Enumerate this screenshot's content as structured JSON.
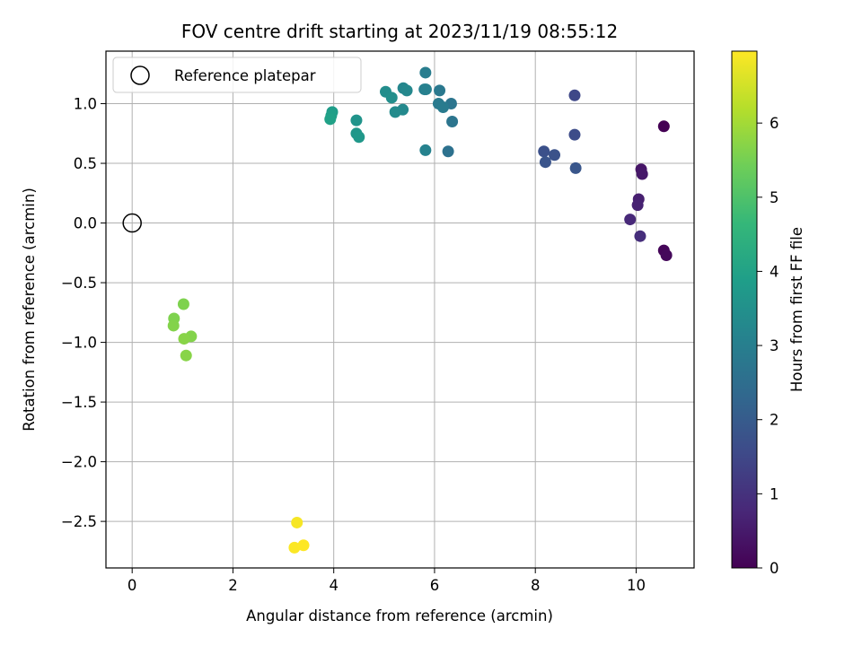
{
  "chart_data": {
    "type": "scatter",
    "title": "FOV centre drift starting at 2023/11/19 08:55:12",
    "xlabel": "Angular distance from reference (arcmin)",
    "ylabel": "Rotation from reference (arcmin)",
    "xlim": [
      -0.52,
      11.15
    ],
    "ylim": [
      -2.89,
      1.44
    ],
    "xticks": [
      0,
      2,
      4,
      6,
      8,
      10
    ],
    "xtick_labels": [
      "0",
      "2",
      "4",
      "6",
      "8",
      "10"
    ],
    "yticks": [
      1.0,
      0.5,
      0.0,
      -0.5,
      -1.0,
      -1.5,
      -2.0,
      -2.5
    ],
    "ytick_labels": [
      "1.0",
      "0.5",
      "0.0",
      "−0.5",
      "−1.0",
      "−1.5",
      "−2.0",
      "−2.5"
    ],
    "grid": true,
    "legend": {
      "position": "top-left",
      "entries": [
        "Reference platepar"
      ]
    },
    "reference_point": {
      "x": 0.0,
      "y": 0.0
    },
    "colorbar": {
      "label": "Hours from first FF file",
      "range": [
        0,
        6.97
      ],
      "ticks": [
        0,
        1,
        2,
        3,
        4,
        5,
        6
      ],
      "tick_labels": [
        "0",
        "1",
        "2",
        "3",
        "4",
        "5",
        "6"
      ],
      "colormap_stops": [
        "#440154",
        "#482878",
        "#3e4a89",
        "#31688e",
        "#26828e",
        "#1f9e89",
        "#35b779",
        "#6ece58",
        "#b5de2b",
        "#fde725"
      ]
    },
    "points": [
      {
        "x": 10.55,
        "y": 0.81,
        "h": 0.0
      },
      {
        "x": 10.55,
        "y": -0.23,
        "h": 0.1
      },
      {
        "x": 10.6,
        "y": -0.27,
        "h": 0.15
      },
      {
        "x": 10.1,
        "y": 0.45,
        "h": 0.4
      },
      {
        "x": 10.12,
        "y": 0.41,
        "h": 0.45
      },
      {
        "x": 10.05,
        "y": 0.2,
        "h": 0.6
      },
      {
        "x": 10.03,
        "y": 0.15,
        "h": 0.65
      },
      {
        "x": 9.88,
        "y": 0.03,
        "h": 0.8
      },
      {
        "x": 10.08,
        "y": -0.11,
        "h": 0.9
      },
      {
        "x": 8.78,
        "y": 1.07,
        "h": 1.5
      },
      {
        "x": 8.78,
        "y": 0.74,
        "h": 1.6
      },
      {
        "x": 8.17,
        "y": 0.6,
        "h": 1.7
      },
      {
        "x": 8.38,
        "y": 0.57,
        "h": 1.75
      },
      {
        "x": 8.2,
        "y": 0.51,
        "h": 1.8
      },
      {
        "x": 8.8,
        "y": 0.46,
        "h": 1.85
      },
      {
        "x": 6.27,
        "y": 0.6,
        "h": 2.6
      },
      {
        "x": 6.33,
        "y": 1.0,
        "h": 2.7
      },
      {
        "x": 6.35,
        "y": 0.85,
        "h": 2.7
      },
      {
        "x": 6.1,
        "y": 1.11,
        "h": 2.8
      },
      {
        "x": 6.08,
        "y": 1.0,
        "h": 2.85
      },
      {
        "x": 6.17,
        "y": 0.97,
        "h": 2.9
      },
      {
        "x": 5.82,
        "y": 1.26,
        "h": 2.95
      },
      {
        "x": 5.8,
        "y": 1.12,
        "h": 3.0
      },
      {
        "x": 5.83,
        "y": 1.12,
        "h": 3.05
      },
      {
        "x": 5.82,
        "y": 0.61,
        "h": 3.1
      },
      {
        "x": 5.38,
        "y": 1.13,
        "h": 3.2
      },
      {
        "x": 5.45,
        "y": 1.11,
        "h": 3.25
      },
      {
        "x": 5.37,
        "y": 0.95,
        "h": 3.3
      },
      {
        "x": 5.22,
        "y": 0.93,
        "h": 3.35
      },
      {
        "x": 5.03,
        "y": 1.1,
        "h": 3.4
      },
      {
        "x": 5.15,
        "y": 1.05,
        "h": 3.45
      },
      {
        "x": 4.45,
        "y": 0.86,
        "h": 3.6
      },
      {
        "x": 4.45,
        "y": 0.75,
        "h": 3.65
      },
      {
        "x": 4.5,
        "y": 0.72,
        "h": 3.7
      },
      {
        "x": 3.97,
        "y": 0.93,
        "h": 3.85
      },
      {
        "x": 3.95,
        "y": 0.9,
        "h": 3.9
      },
      {
        "x": 3.93,
        "y": 0.87,
        "h": 3.95
      },
      {
        "x": 1.02,
        "y": -0.68,
        "h": 5.6
      },
      {
        "x": 0.83,
        "y": -0.8,
        "h": 5.6
      },
      {
        "x": 0.82,
        "y": -0.86,
        "h": 5.65
      },
      {
        "x": 1.17,
        "y": -0.95,
        "h": 5.65
      },
      {
        "x": 1.03,
        "y": -0.97,
        "h": 5.7
      },
      {
        "x": 1.07,
        "y": -1.11,
        "h": 5.7
      },
      {
        "x": 3.27,
        "y": -2.51,
        "h": 6.9
      },
      {
        "x": 3.22,
        "y": -2.72,
        "h": 6.95
      },
      {
        "x": 3.4,
        "y": -2.7,
        "h": 6.97
      }
    ]
  }
}
